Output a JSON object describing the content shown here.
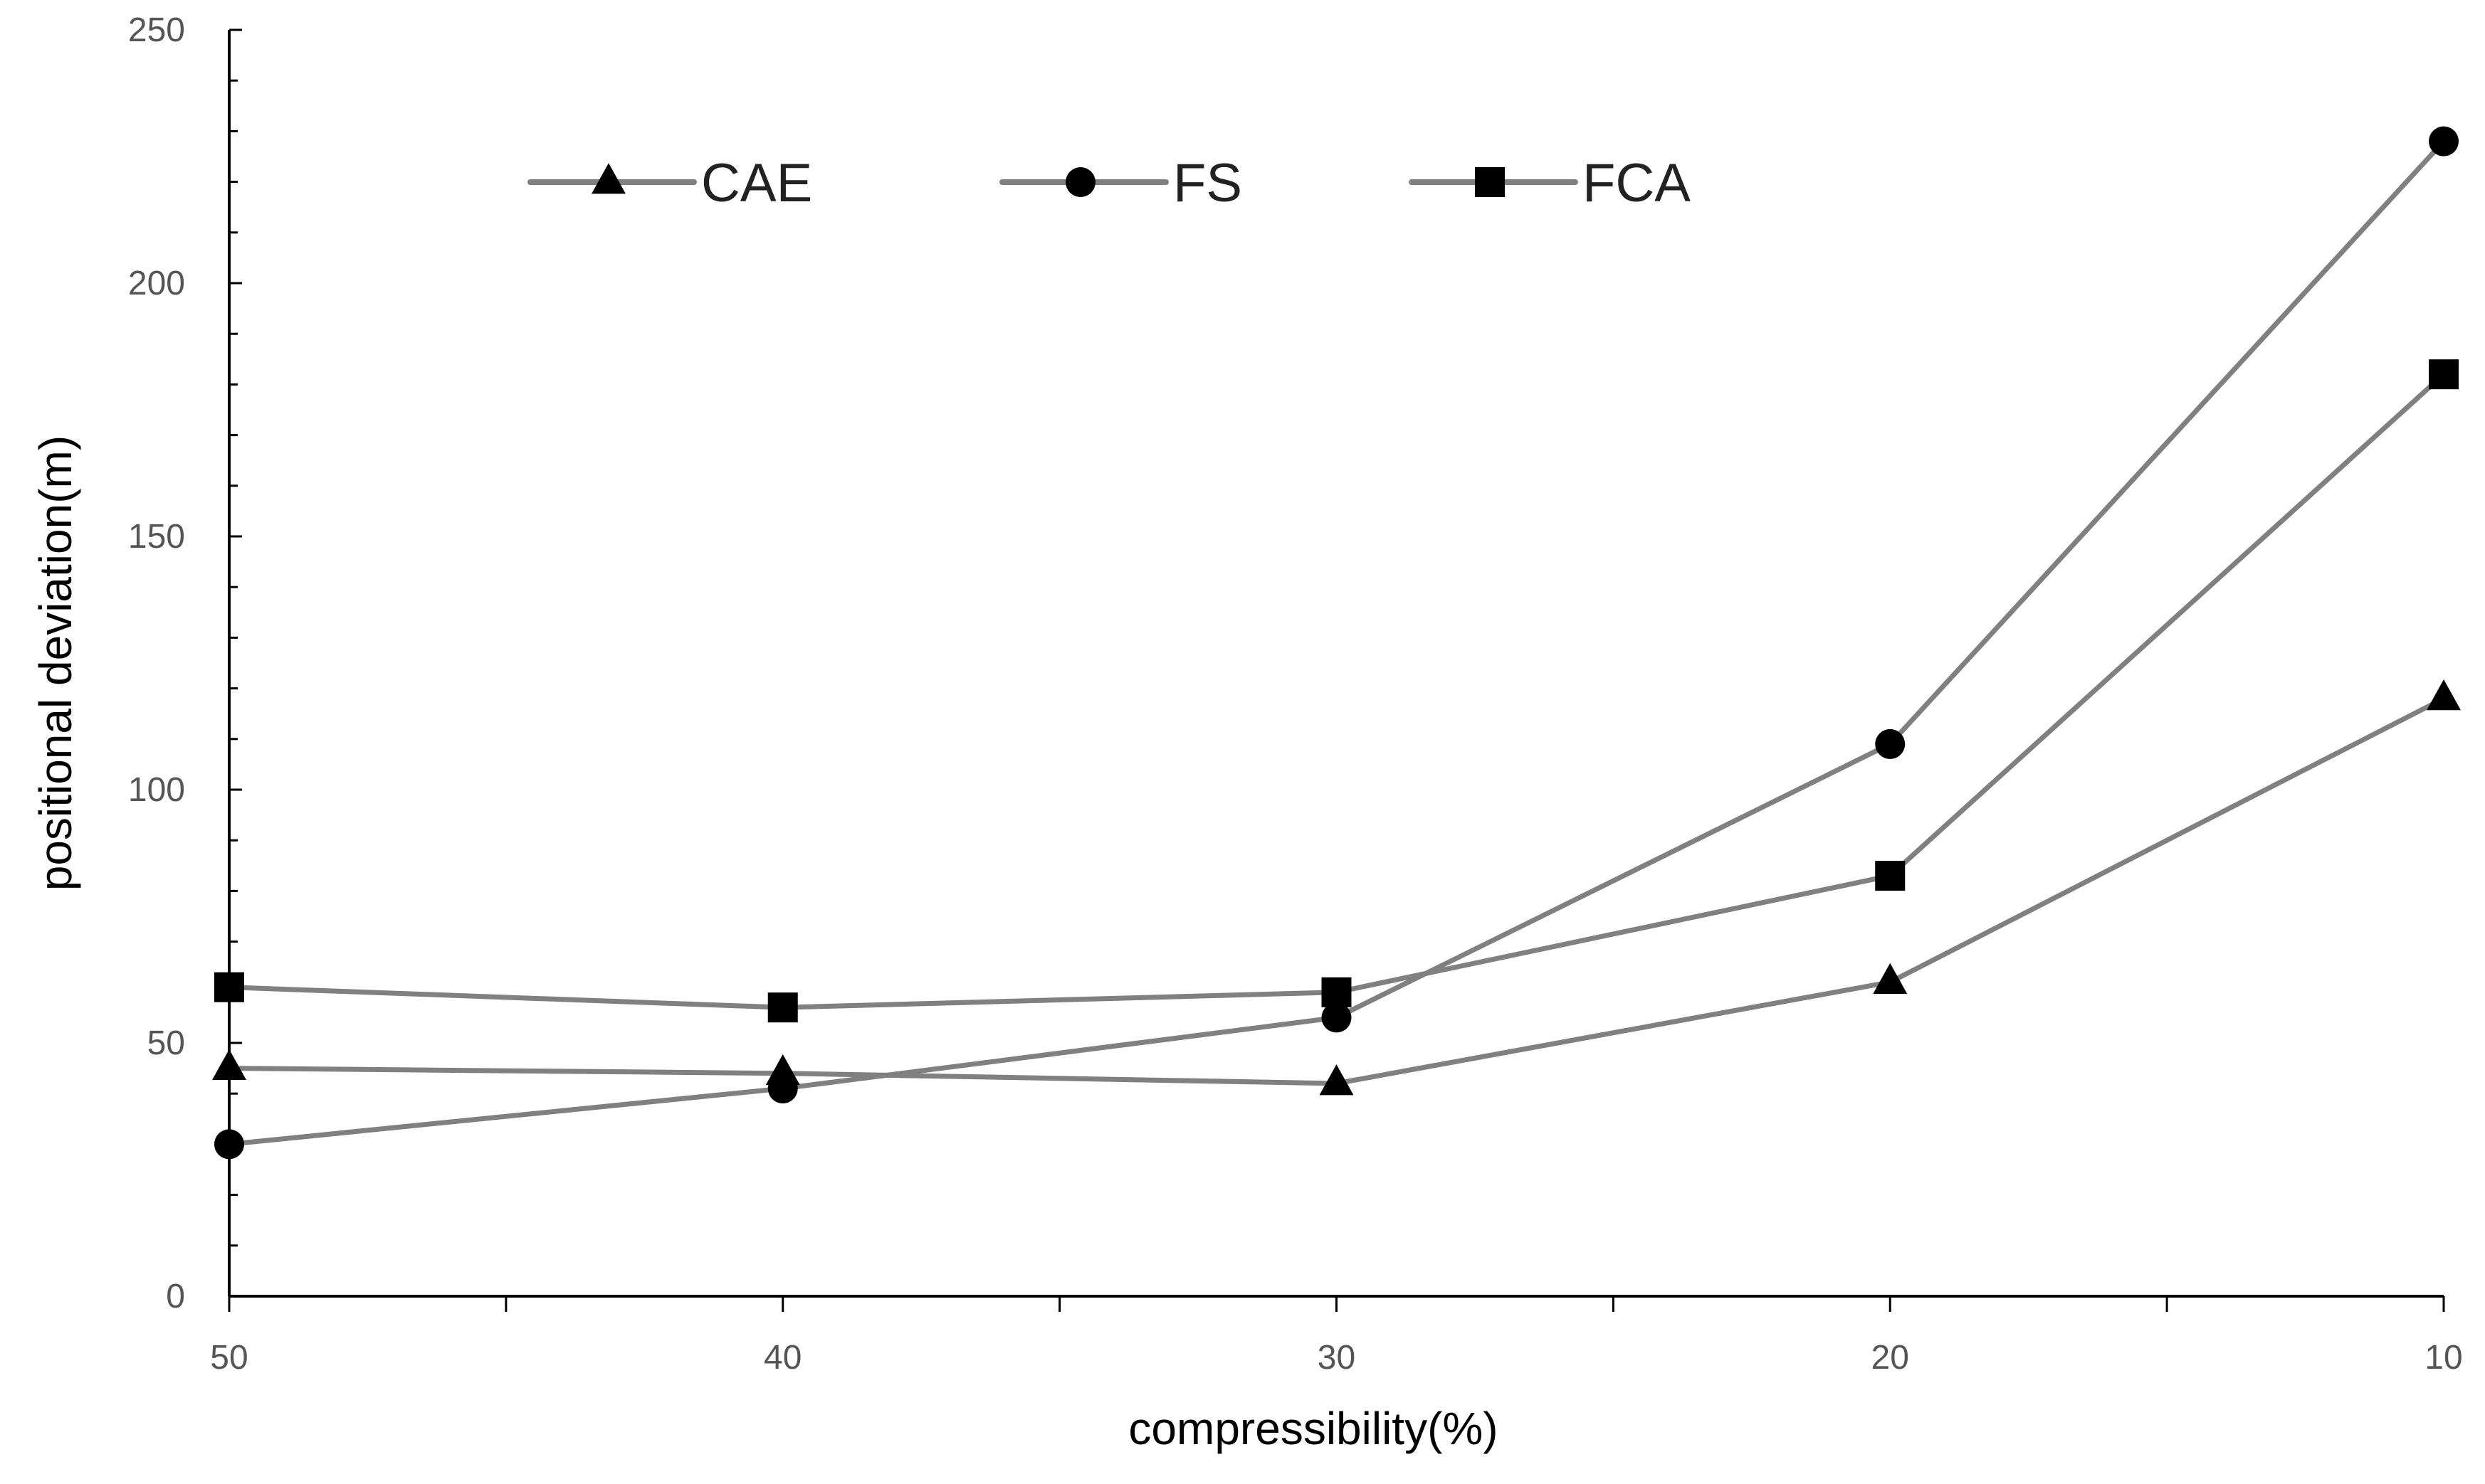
{
  "chart_data": {
    "type": "line",
    "title": "",
    "xlabel": "compressibility(%)",
    "ylabel": "positional deviation(m)",
    "categories": [
      "50",
      "40",
      "30",
      "20",
      "10"
    ],
    "ylim": [
      0,
      250
    ],
    "yticks": [
      "0",
      "50",
      "100",
      "150",
      "200",
      "250"
    ],
    "grid": false,
    "legend_position": "top",
    "series": [
      {
        "name": "CAE",
        "marker": "triangle",
        "values": [
          45,
          44,
          42,
          62,
          118
        ]
      },
      {
        "name": "FS",
        "marker": "circle",
        "values": [
          30,
          41,
          55,
          109,
          228
        ]
      },
      {
        "name": "FCA",
        "marker": "square",
        "values": [
          61,
          57,
          60,
          83,
          182
        ]
      }
    ],
    "colors": {
      "line": "#808080",
      "marker": "#000000",
      "axis": "#000000"
    }
  }
}
